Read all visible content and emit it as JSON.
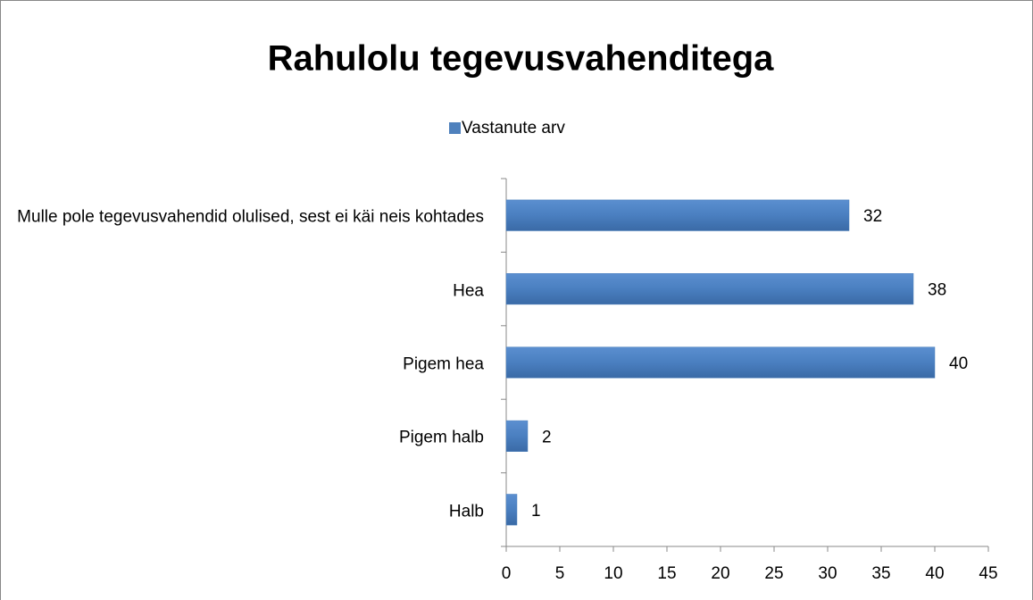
{
  "chart_data": {
    "type": "barh",
    "title": "Rahulolu tegevusvahenditega",
    "categories": [
      "Mulle pole tegevusvahendid olulised, sest ei käi neis kohtades",
      "Hea",
      "Pigem hea",
      "Pigem halb",
      "Halb"
    ],
    "series": [
      {
        "name": "Vastanute arv",
        "color": "#4f81bd",
        "values": [
          32,
          38,
          40,
          2,
          1
        ]
      }
    ],
    "xlim": [
      0,
      45
    ],
    "xticks": [
      0,
      5,
      10,
      15,
      20,
      25,
      30,
      35,
      40,
      45
    ],
    "grid": false,
    "legend": "top"
  }
}
